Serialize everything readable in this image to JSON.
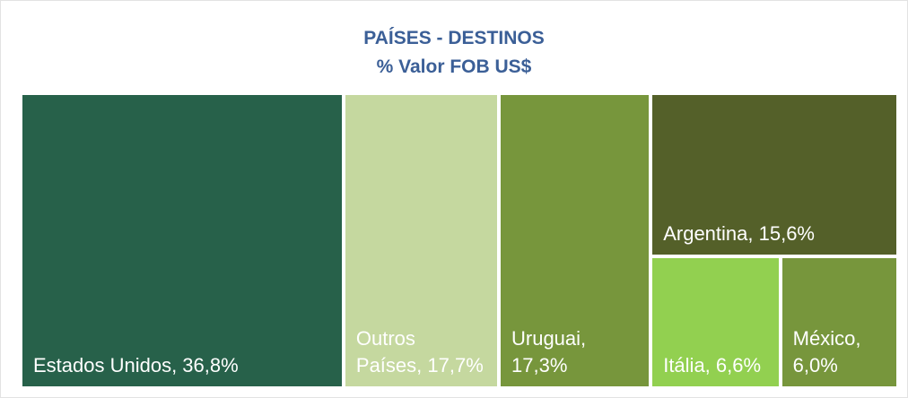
{
  "chart_data": {
    "type": "treemap",
    "title": "PAÍSES - DESTINOS",
    "subtitle": "% Valor FOB US$",
    "values": [
      36.8,
      17.7,
      17.3,
      15.6,
      6.6,
      6.0
    ],
    "value_labels": [
      "Estados Unidos, 36,8%",
      "Outros Países, 17,7%",
      "Uruguai, 17,3%",
      "Argentina, 15,6%",
      "Itália, 6,6%",
      "México, 6,0%"
    ],
    "colors": [
      "#27614a",
      "#c5d89f",
      "#77963c",
      "#546029",
      "#92d050",
      "#77963c"
    ]
  }
}
